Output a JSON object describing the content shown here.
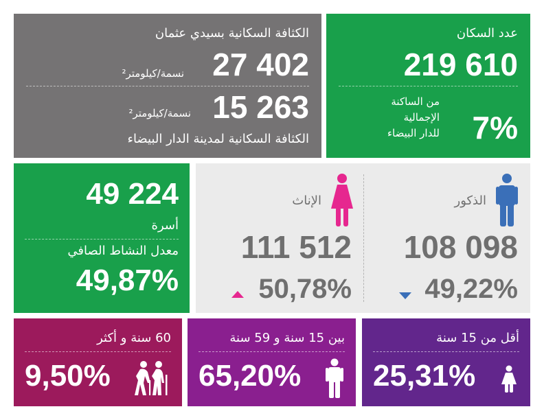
{
  "density": {
    "title": "الكثافة السكانية بسيدي عثمان",
    "value_local": "27 402",
    "unit_local": "نسمة/كيلومتر²",
    "value_city": "15 263",
    "unit_city": "نسمة/كيلومتر²",
    "caption_city": "الكثافة السكانية لمدينة الدار البيضاء"
  },
  "population": {
    "label": "عدد السكان",
    "value": "219 610",
    "share": "7%",
    "share_caption_1": "من الساكنة",
    "share_caption_2": "الإجمالية",
    "share_caption_3": "للدار البيضاء"
  },
  "households": {
    "value": "49 224",
    "label": "أسرة",
    "activity_label": "معدل النشاط الصافي",
    "activity_value": "49,87%"
  },
  "gender": {
    "male_label": "الذكور",
    "male_value": "108 098",
    "male_pct": "49,22%",
    "female_label": "الإناث",
    "female_value": "111 512",
    "female_pct": "50,78%"
  },
  "age": {
    "old_label": "60 سنة و أكثر",
    "old_pct": "9,50%",
    "mid_label": "بين 15 سنة و 59 سنة",
    "mid_pct": "65,20%",
    "young_label": "أقل من 15 سنة",
    "young_pct": "25,31%"
  },
  "colors": {
    "grey_panel": "#757374",
    "green_panel": "#19a04b",
    "light_panel": "#ebebeb",
    "male_blue": "#3a6fb8",
    "female_pink": "#e6278f",
    "age_old": "#9c1a5c",
    "age_mid": "#8a1f8f",
    "age_young": "#62268c"
  }
}
